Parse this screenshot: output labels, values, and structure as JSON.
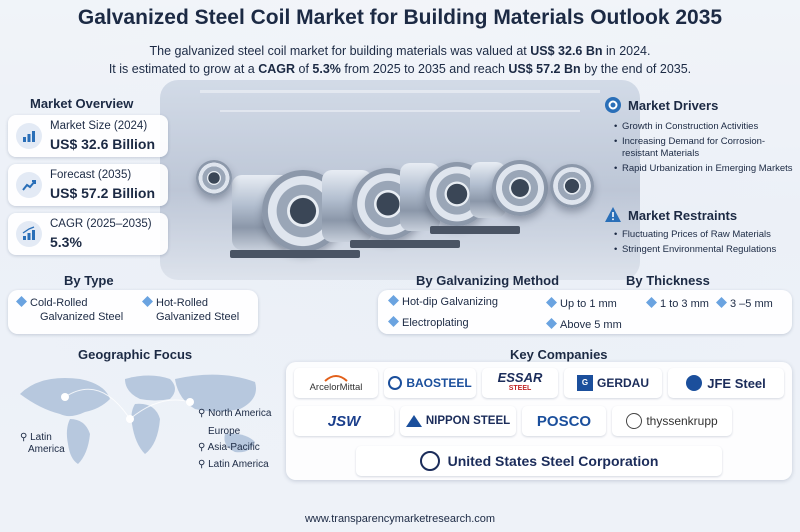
{
  "title": "Galvanized Steel Coil Market for Building Materials Outlook 2035",
  "intro": {
    "line1_pre": "The galvanized steel coil market for building materials was valued at ",
    "line1_bold": "US$ 32.6 Bn",
    "line1_post": " in 2024.",
    "line2_pre": "It is estimated to grow at a ",
    "line2_cagr": "CAGR",
    "line2_mid1": " of ",
    "line2_rate": "5.3%",
    "line2_mid2": " from 2025 to 2035 and reach ",
    "line2_bold": "US$ 57.2 Bn",
    "line2_post": " by the end of 2035."
  },
  "overview": {
    "heading": "Market Overview",
    "cards": [
      {
        "label": "Market Size (2024)",
        "value": "US$ 32.6 Billion",
        "icon": "bar-chart-icon"
      },
      {
        "label": "Forecast (2035)",
        "value": "US$ 57.2 Billion",
        "icon": "trend-up-icon"
      },
      {
        "label": "CAGR (2025–2035)",
        "value": "5.3%",
        "icon": "growth-bars-icon"
      }
    ]
  },
  "drivers": {
    "heading": "Market Drivers",
    "items": [
      "Growth in Construction Activities",
      "Increasing Demand for Corrosion-resistant Materials",
      "Rapid Urbanization in Emerging Markets"
    ]
  },
  "restraints": {
    "heading": "Market Restraints",
    "items": [
      "Fluctuating Prices of Raw Materials",
      "Stringent Environmental Regulations"
    ]
  },
  "by_type": {
    "heading": "By Type",
    "items": [
      {
        "line1": "Cold-Rolled",
        "line2": "Galvanized Steel"
      },
      {
        "line1": "Hot-Rolled",
        "line2": "Galvanized Steel"
      }
    ]
  },
  "by_method": {
    "heading": "By Galvanizing Method",
    "items": [
      "Hot-dip Galvanizing",
      "Electroplating"
    ]
  },
  "by_thickness": {
    "heading": "By Thickness",
    "items": [
      "Up to 1 mm",
      "1 to 3 mm",
      "3 –5 mm",
      "Above 5 mm"
    ]
  },
  "geo": {
    "heading": "Geographic Focus",
    "labels": [
      "Latin",
      "America",
      "North America",
      "Europe",
      "Asia-Pacific",
      "Latin America"
    ]
  },
  "companies": {
    "heading": "Key Companies",
    "logos": [
      "ArcelorMittal",
      "BAOSTEEL",
      "ESSAR",
      "STEEL",
      "GERDAU",
      "JFE Steel",
      "JSW",
      "NIPPON STEEL",
      "POSCO",
      "thyssenkrupp",
      "United States Steel Corporation"
    ]
  },
  "footer": "www.transparencymarketresearch.com",
  "colors": {
    "primary": "#1c2a44",
    "accent": "#2a6fb8",
    "gem": "#6aa3e0"
  }
}
